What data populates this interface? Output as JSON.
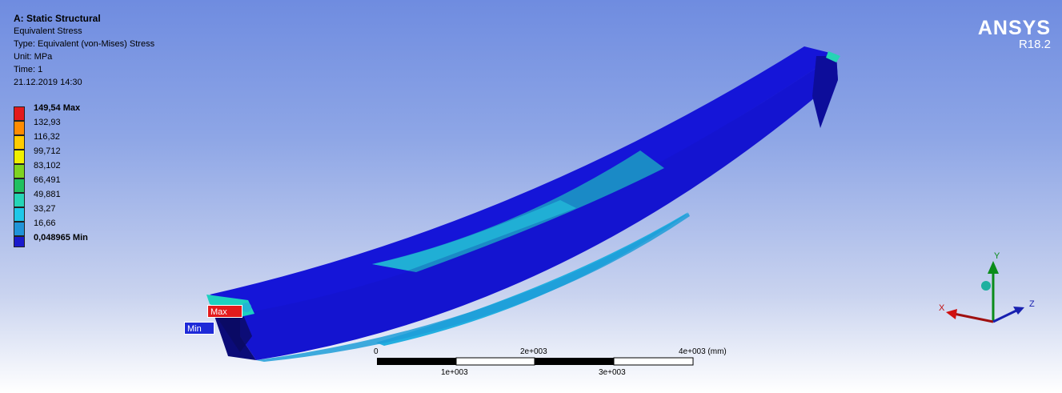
{
  "header": {
    "title": "A: Static Structural",
    "result": "Equivalent Stress",
    "type": "Type: Equivalent (von-Mises) Stress",
    "unit": "Unit: MPa",
    "time": "Time: 1",
    "timestamp": "21.12.2019 14:30"
  },
  "legend": [
    {
      "label": "149,54 Max",
      "color": "#e31a1c",
      "bold": true
    },
    {
      "label": "132,93",
      "color": "#ff8c00"
    },
    {
      "label": "116,32",
      "color": "#ffcc00"
    },
    {
      "label": "99,712",
      "color": "#f0f000"
    },
    {
      "label": "83,102",
      "color": "#7ed321"
    },
    {
      "label": "66,491",
      "color": "#20c060"
    },
    {
      "label": "49,881",
      "color": "#26d4b6"
    },
    {
      "label": "33,27",
      "color": "#1ec8e8"
    },
    {
      "label": "16,66",
      "color": "#2094d8"
    },
    {
      "label": "0,048965 Min",
      "color": "#1a1acc",
      "bold": true
    }
  ],
  "logo": {
    "brand": "ANSYS",
    "version": "R18.2"
  },
  "probes": {
    "max_label": "Max",
    "min_label": "Min"
  },
  "scale_bar": {
    "top_labels": [
      "0",
      "2e+003",
      "4e+003 (mm)"
    ],
    "bottom_labels": [
      "1e+003",
      "3e+003"
    ]
  },
  "triad": {
    "y": "Y",
    "x": "X",
    "z": "Z"
  },
  "colors": {
    "beam_body": "#1212d6",
    "beam_shadow": "#0c0c8a",
    "stress_mid": "#1a8cc8",
    "stress_light": "#22b4d4"
  }
}
